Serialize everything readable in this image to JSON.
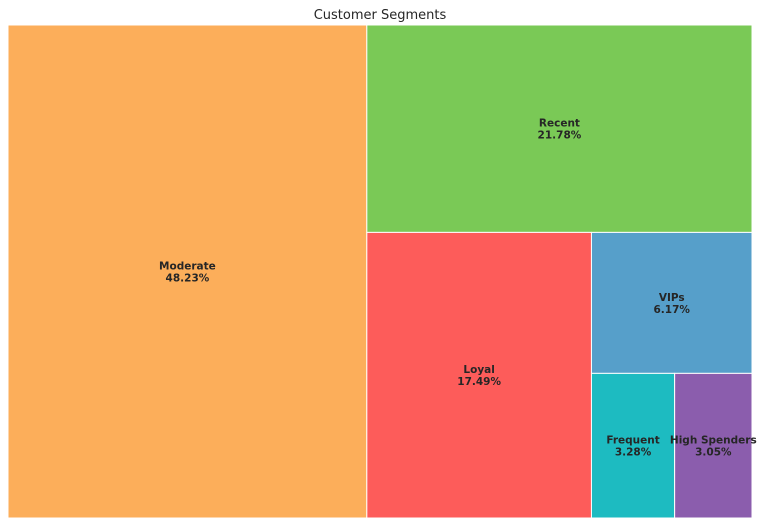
{
  "chart_data": {
    "type": "treemap",
    "title": "Customer Segments",
    "segments": [
      {
        "name": "Moderate",
        "value": 48.23,
        "label": "48.23%",
        "color": "#fcae5a"
      },
      {
        "name": "Recent",
        "value": 21.78,
        "label": "21.78%",
        "color": "#7ac956"
      },
      {
        "name": "Loyal",
        "value": 17.49,
        "label": "17.49%",
        "color": "#fd5c5a"
      },
      {
        "name": "VIPs",
        "value": 6.17,
        "label": "6.17%",
        "color": "#569fca"
      },
      {
        "name": "Frequent",
        "value": 3.28,
        "label": "3.28%",
        "color": "#1dbbc1"
      },
      {
        "name": "High Spenders",
        "value": 3.05,
        "label": "3.05%",
        "color": "#8b5dad"
      }
    ]
  }
}
